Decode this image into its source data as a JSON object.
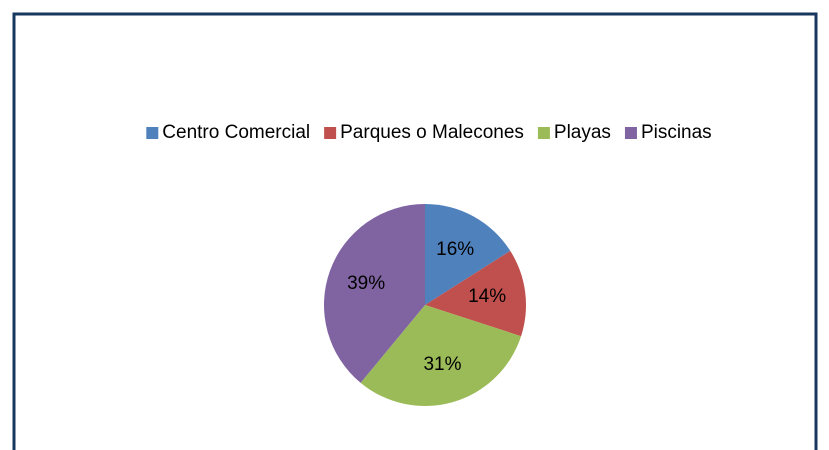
{
  "chart_data": {
    "type": "pie",
    "categories": [
      "Centro Comercial",
      "Parques o Malecones",
      "Playas",
      "Piscinas"
    ],
    "values": [
      16,
      14,
      31,
      39
    ],
    "value_labels": [
      "16%",
      "14%",
      "31%",
      "39%"
    ],
    "colors": [
      "#4f81bd",
      "#c0504d",
      "#9bbb59",
      "#8064a2"
    ],
    "legend": "top"
  }
}
